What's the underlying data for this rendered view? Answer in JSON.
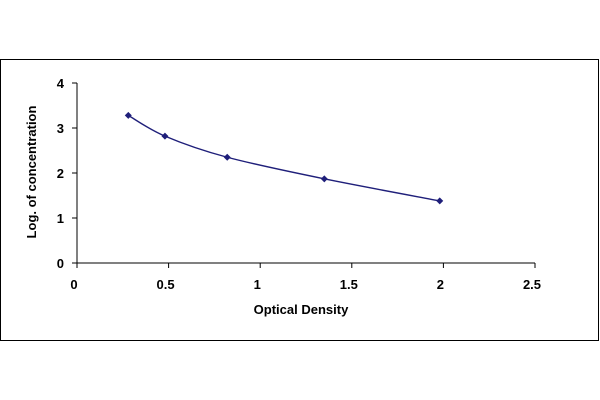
{
  "chart_data": {
    "type": "line",
    "title": "",
    "xlabel": "Optical Density",
    "ylabel": "Log. of concentration",
    "xlim": [
      0,
      2.5
    ],
    "ylim": [
      0,
      4
    ],
    "x_ticks": [
      0,
      0.5,
      1,
      1.5,
      2,
      2.5
    ],
    "x_tick_labels": [
      "0",
      "0.5",
      "1",
      "1.5",
      "2",
      "2.5"
    ],
    "y_ticks": [
      0,
      1,
      2,
      3,
      4
    ],
    "y_tick_labels": [
      "0",
      "1",
      "2",
      "3",
      "4"
    ],
    "grid": false,
    "legend": "none",
    "series": [
      {
        "x": [
          0.28,
          0.48,
          0.82,
          1.35,
          1.98
        ],
        "y": [
          3.28,
          2.82,
          2.35,
          1.87,
          1.38
        ],
        "color": "#1f1f7a",
        "marker": "diamond"
      }
    ]
  }
}
